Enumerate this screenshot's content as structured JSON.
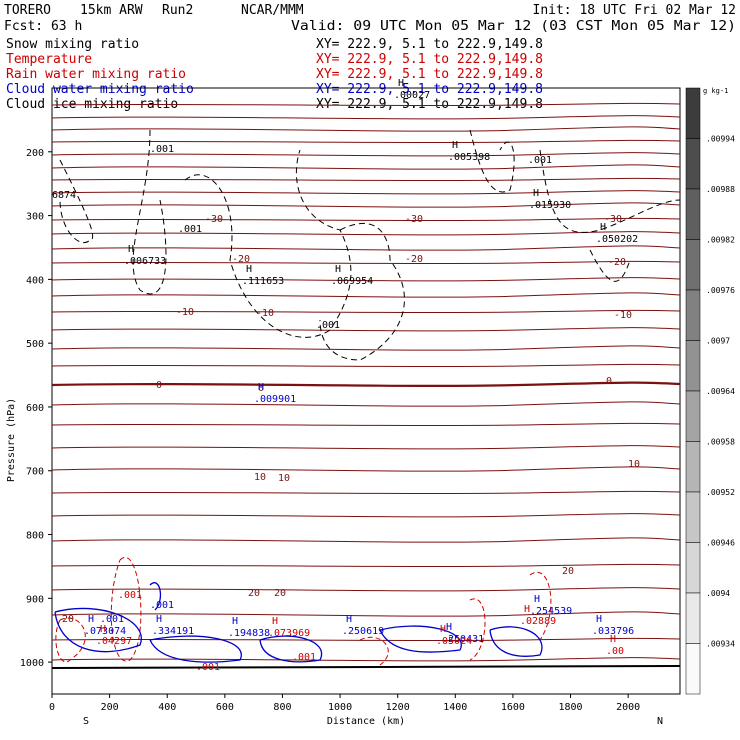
{
  "header": {
    "model": "TORERO",
    "resolution": "15km ARW",
    "run": "Run2",
    "org": "NCAR/MMM",
    "init": "Init: 18 UTC Fri 02 Mar 12",
    "fcst": "Fcst:   63 h",
    "valid": "Valid: 09 UTC Mon 05 Mar 12 (03 CST Mon 05 Mar 12)"
  },
  "fields": [
    {
      "name": "Snow mixing ratio",
      "xy": "XY= 222.9,  5.1 to 222.9,149.8",
      "color": "#000000"
    },
    {
      "name": "Temperature",
      "xy": "XY= 222.9,  5.1 to 222.9,149.8",
      "color": "#cc0000"
    },
    {
      "name": "Rain water mixing ratio",
      "xy": "XY= 222.9,  5.1 to 222.9,149.8",
      "color": "#cc0000"
    },
    {
      "name": "Cloud water mixing ratio",
      "xy": "XY= 222.9,  5.1 to 222.9,149.8",
      "color": "#0000cc"
    },
    {
      "name": "Cloud ice mixing ratio",
      "xy": "XY= 222.9,  5.1 to 222.9,149.8",
      "color": "#000000"
    }
  ],
  "chart_data": {
    "type": "cross-section contour",
    "xlabel": "Distance (km)",
    "ylabel": "Pressure (hPa)",
    "x_ticks": [
      0,
      200,
      400,
      600,
      800,
      1000,
      1200,
      1400,
      1600,
      1800,
      2000
    ],
    "y_ticks": [
      200,
      300,
      400,
      500,
      600,
      700,
      800,
      900,
      1000
    ],
    "xlim": [
      0,
      2180
    ],
    "ylim": [
      1050,
      100
    ],
    "x_end_labels": [
      "S",
      "N"
    ],
    "colorbar": {
      "unit": "g kg-1",
      "ticks": [
        ".00994",
        ".00988",
        ".00982",
        ".00976",
        ".0097",
        ".00964",
        ".00958",
        ".00952",
        ".00946",
        ".0094",
        ".00934"
      ]
    },
    "temperature_labels": [
      "-30",
      "-30",
      "-30",
      "-20",
      "-20",
      "-20",
      "-10",
      "-10",
      "-10",
      "0",
      "0",
      "0",
      "10",
      "10",
      "10",
      "20",
      "20",
      "20",
      "20"
    ],
    "extrema_labels": [
      {
        "sym": "H",
        "value": ".006733",
        "color": "#000000"
      },
      {
        "sym": "H",
        "value": ".111653",
        "color": "#000000"
      },
      {
        "sym": "H",
        "value": ".069954",
        "color": "#000000"
      },
      {
        "sym": "H",
        "value": ".005398",
        "color": "#000000"
      },
      {
        "sym": "H",
        "value": ".015930",
        "color": "#000000"
      },
      {
        "sym": "H",
        "value": ".050202",
        "color": "#000000"
      },
      {
        "sym": "H",
        "value": ".00027",
        "color": "#000000"
      },
      {
        "sym": "H",
        "value": ".009901",
        "color": "#0000cc"
      },
      {
        "sym": "H",
        "value": ".073074",
        "color": "#0000cc"
      },
      {
        "sym": "H",
        "value": ".334191",
        "color": "#0000cc"
      },
      {
        "sym": "H",
        "value": ".194838",
        "color": "#0000cc"
      },
      {
        "sym": "H",
        "value": ".250619",
        "color": "#0000cc"
      },
      {
        "sym": "H",
        "value": ".250431",
        "color": "#0000cc"
      },
      {
        "sym": "H",
        "value": ".254539",
        "color": "#0000cc"
      },
      {
        "sym": "H",
        "value": ".033796",
        "color": "#0000cc"
      },
      {
        "sym": "H",
        "value": ".04297",
        "color": "#cc0000"
      },
      {
        "sym": "H",
        "value": ".073969",
        "color": "#cc0000"
      },
      {
        "sym": "H",
        "value": ".05024",
        "color": "#cc0000"
      },
      {
        "sym": "H",
        "value": ".02889",
        "color": "#cc0000"
      },
      {
        "sym": "H",
        "value": ".00",
        "color": "#cc0000"
      }
    ],
    "contour_labels": [
      ".001",
      ".001",
      ".001",
      "6874",
      ".001",
      ".001",
      ".001",
      ".001",
      ".001",
      ".001"
    ]
  }
}
